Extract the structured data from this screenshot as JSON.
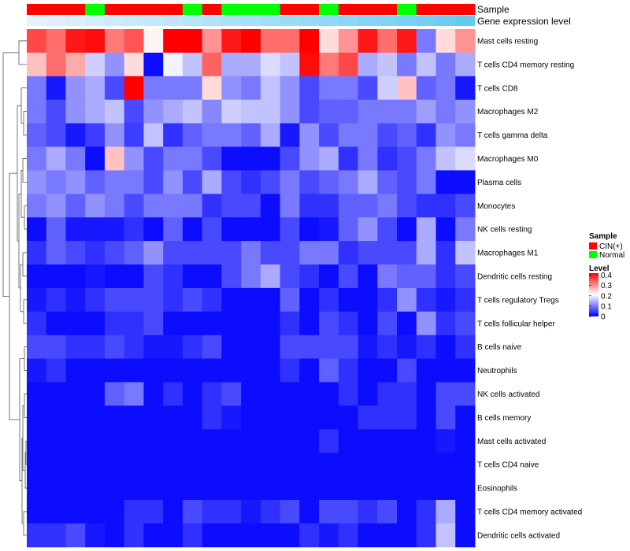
{
  "chart_data": {
    "type": "heatmap",
    "title": "",
    "column_count": 23,
    "annotation_tracks": [
      {
        "name": "Sample",
        "values": [
          "CIN(+)",
          "CIN(+)",
          "CIN(+)",
          "Normal",
          "CIN(+)",
          "CIN(+)",
          "CIN(+)",
          "CIN(+)",
          "Normal",
          "CIN(+)",
          "Normal",
          "Normal",
          "Normal",
          "CIN(+)",
          "CIN(+)",
          "Normal",
          "CIN(+)",
          "CIN(+)",
          "CIN(+)",
          "Normal",
          "CIN(+)",
          "CIN(+)",
          "CIN(+)"
        ]
      },
      {
        "name": "Gene expression level",
        "values": [
          0.02,
          0.05,
          0.09,
          0.14,
          0.18,
          0.22,
          0.26,
          0.3,
          0.35,
          0.39,
          0.43,
          0.47,
          0.51,
          0.55,
          0.59,
          0.63,
          0.67,
          0.71,
          0.75,
          0.79,
          0.84,
          0.9,
          0.96
        ]
      }
    ],
    "row_labels": [
      "Mast cells resting",
      "T cells CD4 memory resting",
      "T cells CD8",
      "Macrophages M2",
      "T cells gamma delta",
      "Macrophages M0",
      "Plasma cells",
      "Monocytes",
      "NK cells resting",
      "Macrophages M1",
      "Dendritic cells resting",
      "T cells regulatory  Tregs",
      "T cells follicular helper",
      "B cells naive",
      "Neutrophils",
      "NK cells activated",
      "B cells memory",
      "Mast cells activated",
      "T cells CD4 naive",
      "Eosinophils",
      "T cells CD4 memory activated",
      "Dendritic cells activated"
    ],
    "values": [
      [
        0.36,
        0.33,
        0.4,
        0.41,
        0.32,
        0.35,
        0.22,
        0.42,
        0.42,
        0.3,
        0.4,
        0.42,
        0.33,
        0.33,
        0.42,
        0.24,
        0.3,
        0.4,
        0.33,
        0.4,
        0.1,
        0.24,
        0.3
      ],
      [
        0.26,
        0.33,
        0.28,
        0.17,
        0.12,
        0.24,
        0.01,
        0.2,
        0.16,
        0.34,
        0.14,
        0.14,
        0.18,
        0.16,
        0.41,
        0.32,
        0.36,
        0.14,
        0.16,
        0.1,
        0.16,
        0.1,
        0.14
      ],
      [
        0.1,
        0.02,
        0.12,
        0.14,
        0.06,
        0.42,
        0.1,
        0.1,
        0.1,
        0.24,
        0.12,
        0.1,
        0.16,
        0.12,
        0.06,
        0.1,
        0.1,
        0.06,
        0.17,
        0.26,
        0.08,
        0.1,
        0.02
      ],
      [
        0.1,
        0.06,
        0.12,
        0.14,
        0.16,
        0.06,
        0.12,
        0.14,
        0.16,
        0.11,
        0.17,
        0.16,
        0.16,
        0.12,
        0.06,
        0.08,
        0.08,
        0.1,
        0.1,
        0.1,
        0.13,
        0.1,
        0.12
      ],
      [
        0.08,
        0.06,
        0.02,
        0.05,
        0.12,
        0.05,
        0.16,
        0.04,
        0.08,
        0.1,
        0.1,
        0.08,
        0.14,
        0.02,
        0.12,
        0.06,
        0.1,
        0.1,
        0.06,
        0.08,
        0.04,
        0.12,
        0.1
      ],
      [
        0.1,
        0.14,
        0.1,
        0.01,
        0.26,
        0.12,
        0.06,
        0.1,
        0.1,
        0.06,
        0.01,
        0.01,
        0.01,
        0.06,
        0.12,
        0.14,
        0.04,
        0.1,
        0.04,
        0.06,
        0.1,
        0.16,
        0.18
      ],
      [
        0.12,
        0.1,
        0.12,
        0.08,
        0.1,
        0.1,
        0.06,
        0.12,
        0.06,
        0.14,
        0.06,
        0.04,
        0.06,
        0.1,
        0.06,
        0.08,
        0.1,
        0.14,
        0.08,
        0.06,
        0.1,
        0.01,
        0.01
      ],
      [
        0.1,
        0.12,
        0.08,
        0.12,
        0.1,
        0.06,
        0.1,
        0.1,
        0.1,
        0.04,
        0.06,
        0.06,
        0.01,
        0.1,
        0.04,
        0.04,
        0.08,
        0.08,
        0.1,
        0.06,
        0.04,
        0.04,
        0.06
      ],
      [
        0.01,
        0.08,
        0.02,
        0.02,
        0.02,
        0.04,
        0.01,
        0.08,
        0.01,
        0.06,
        0.01,
        0.01,
        0.01,
        0.06,
        0.01,
        0.02,
        0.08,
        0.12,
        0.06,
        0.01,
        0.14,
        0.01,
        0.1
      ],
      [
        0.04,
        0.08,
        0.06,
        0.04,
        0.06,
        0.08,
        0.12,
        0.06,
        0.06,
        0.06,
        0.06,
        0.1,
        0.06,
        0.06,
        0.1,
        0.1,
        0.04,
        0.06,
        0.06,
        0.06,
        0.14,
        0.04,
        0.16
      ],
      [
        0.01,
        0.01,
        0.01,
        0.02,
        0.01,
        0.01,
        0.06,
        0.04,
        0.01,
        0.01,
        0.06,
        0.1,
        0.14,
        0.06,
        0.04,
        0.01,
        0.06,
        0.01,
        0.1,
        0.08,
        0.08,
        0.04,
        0.06
      ],
      [
        0.02,
        0.04,
        0.02,
        0.04,
        0.06,
        0.06,
        0.06,
        0.04,
        0.06,
        0.04,
        0.01,
        0.01,
        0.01,
        0.08,
        0.01,
        0.04,
        0.01,
        0.01,
        0.04,
        0.12,
        0.04,
        0.02,
        0.04
      ],
      [
        0.04,
        0.01,
        0.01,
        0.01,
        0.04,
        0.04,
        0.06,
        0.01,
        0.01,
        0.01,
        0.01,
        0.01,
        0.01,
        0.04,
        0.01,
        0.06,
        0.04,
        0.01,
        0.06,
        0.01,
        0.12,
        0.04,
        0.06
      ],
      [
        0.06,
        0.06,
        0.04,
        0.04,
        0.06,
        0.04,
        0.02,
        0.02,
        0.04,
        0.06,
        0.01,
        0.01,
        0.01,
        0.06,
        0.06,
        0.06,
        0.06,
        0.02,
        0.04,
        0.02,
        0.04,
        0.01,
        0.04
      ],
      [
        0.02,
        0.04,
        0.01,
        0.01,
        0.01,
        0.01,
        0.01,
        0.01,
        0.01,
        0.01,
        0.01,
        0.01,
        0.01,
        0.04,
        0.01,
        0.08,
        0.04,
        0.01,
        0.01,
        0.06,
        0.01,
        0.01,
        0.01
      ],
      [
        0.01,
        0.01,
        0.01,
        0.01,
        0.08,
        0.1,
        0.01,
        0.04,
        0.01,
        0.04,
        0.06,
        0.01,
        0.01,
        0.01,
        0.01,
        0.01,
        0.04,
        0.01,
        0.04,
        0.04,
        0.01,
        0.06,
        0.06
      ],
      [
        0.01,
        0.01,
        0.01,
        0.01,
        0.01,
        0.01,
        0.01,
        0.01,
        0.01,
        0.04,
        0.02,
        0.01,
        0.01,
        0.01,
        0.01,
        0.01,
        0.01,
        0.04,
        0.04,
        0.04,
        0.01,
        0.06,
        0.01
      ],
      [
        0.01,
        0.01,
        0.01,
        0.01,
        0.01,
        0.01,
        0.01,
        0.01,
        0.01,
        0.01,
        0.01,
        0.01,
        0.01,
        0.01,
        0.01,
        0.04,
        0.01,
        0.01,
        0.01,
        0.01,
        0.01,
        0.02,
        0.01
      ],
      [
        0.01,
        0.01,
        0.01,
        0.01,
        0.01,
        0.01,
        0.01,
        0.01,
        0.01,
        0.01,
        0.01,
        0.01,
        0.01,
        0.01,
        0.01,
        0.01,
        0.01,
        0.01,
        0.01,
        0.01,
        0.01,
        0.01,
        0.01
      ],
      [
        0.01,
        0.01,
        0.01,
        0.01,
        0.01,
        0.01,
        0.01,
        0.01,
        0.01,
        0.01,
        0.01,
        0.01,
        0.01,
        0.01,
        0.01,
        0.01,
        0.01,
        0.01,
        0.01,
        0.01,
        0.01,
        0.01,
        0.01
      ],
      [
        0.01,
        0.01,
        0.01,
        0.01,
        0.01,
        0.04,
        0.04,
        0.01,
        0.06,
        0.04,
        0.04,
        0.02,
        0.04,
        0.06,
        0.01,
        0.06,
        0.06,
        0.04,
        0.06,
        0.01,
        0.04,
        0.14,
        0.01
      ],
      [
        0.04,
        0.04,
        0.06,
        0.02,
        0.01,
        0.04,
        0.01,
        0.01,
        0.04,
        0.01,
        0.01,
        0.01,
        0.01,
        0.01,
        0.04,
        0.02,
        0.04,
        0.01,
        0.01,
        0.01,
        0.04,
        0.16,
        0.01
      ]
    ],
    "legend": {
      "sample_title": "Sample",
      "sample_entries": [
        {
          "label": "CIN(+)",
          "color": "#ff0000"
        },
        {
          "label": "Normal",
          "color": "#00ff00"
        }
      ],
      "level_title": "Level",
      "level_ticks": [
        {
          "value": 0.4,
          "label": "0.4"
        },
        {
          "value": 0.3,
          "label": "0.3"
        },
        {
          "value": 0.2,
          "label": "0.2"
        },
        {
          "value": 0.1,
          "label": "0.1"
        },
        {
          "value": 0.0,
          "label": "0"
        }
      ],
      "level_range": [
        0,
        0.42
      ]
    },
    "colors": {
      "low": "#0000ff",
      "mid": "#ffffff",
      "high": "#ff0000",
      "expr_low": "#e6f3fb",
      "expr_high": "#5ec8f2"
    }
  }
}
